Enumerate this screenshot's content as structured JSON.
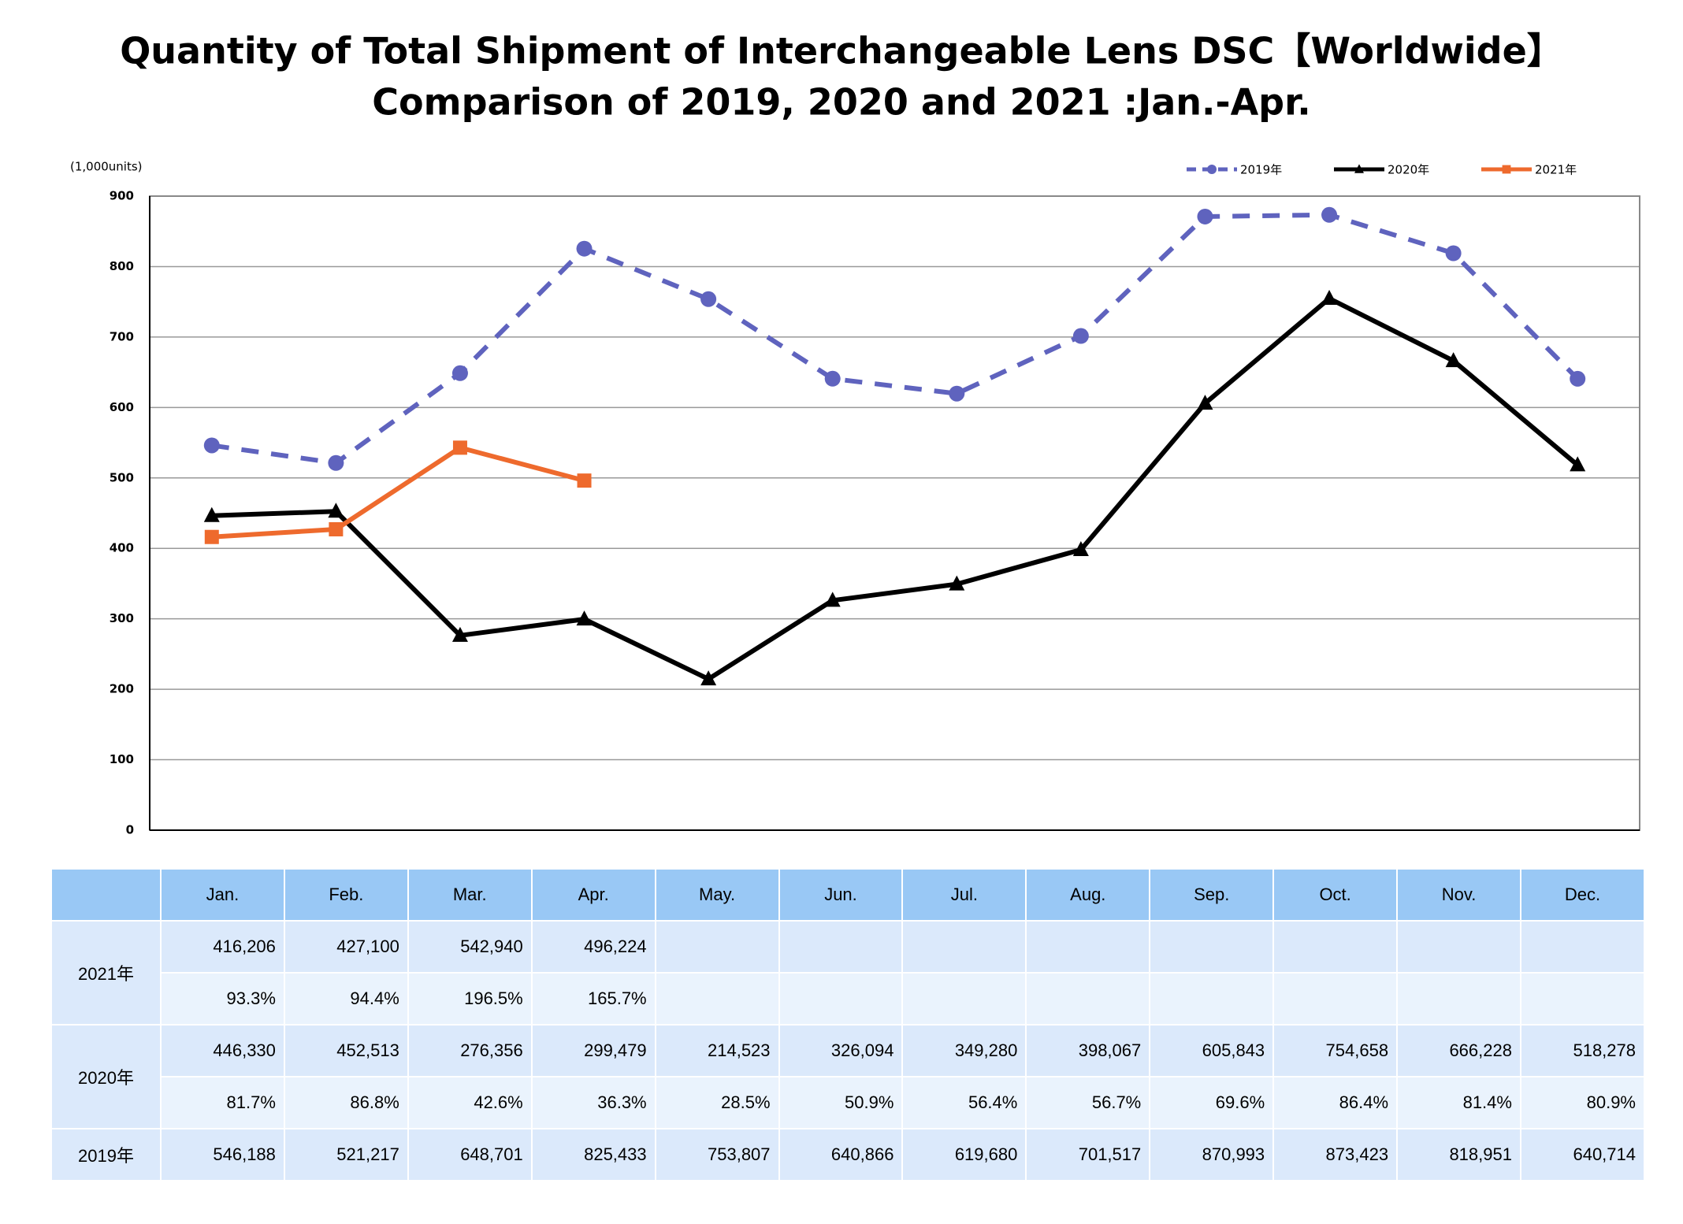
{
  "chart_data": {
    "type": "line",
    "title": "Quantity of Total Shipment of Interchangeable Lens DSC【Worldwide】",
    "subtitle": "Comparison of 2019, 2020 and 2021 :Jan.-Apr.",
    "y_axis_label": "(1,000units)",
    "categories": [
      "Jan.",
      "Feb.",
      "Mar.",
      "Apr.",
      "May.",
      "Jun.",
      "Jul.",
      "Aug.",
      "Sep.",
      "Oct.",
      "Nov.",
      "Dec."
    ],
    "series": [
      {
        "name": "2019年",
        "color": "#5f63be",
        "dashed": true,
        "marker": "circle",
        "values": [
          546.188,
          521.217,
          648.701,
          825.433,
          753.807,
          640.866,
          619.68,
          701.517,
          870.993,
          873.423,
          818.951,
          640.714
        ]
      },
      {
        "name": "2020年",
        "color": "#000000",
        "dashed": false,
        "marker": "triangle",
        "values": [
          446.33,
          452.513,
          276.356,
          299.479,
          214.523,
          326.094,
          349.28,
          398.067,
          605.843,
          754.658,
          666.228,
          518.278
        ]
      },
      {
        "name": "2021年",
        "color": "#ee6a2d",
        "dashed": false,
        "marker": "square",
        "values": [
          416.206,
          427.1,
          542.94,
          496.224,
          null,
          null,
          null,
          null,
          null,
          null,
          null,
          null
        ]
      }
    ],
    "ylim": [
      0,
      900
    ],
    "yticks": [
      0,
      100,
      200,
      300,
      400,
      500,
      600,
      700,
      800,
      900
    ],
    "grid": true,
    "legend": "top-right"
  },
  "table": {
    "rows": [
      {
        "label": "2021年",
        "values": [
          "416,206",
          "427,100",
          "542,940",
          "496,224"
        ],
        "ratios": [
          "93.3%",
          "94.4%",
          "196.5%",
          "165.7%"
        ]
      },
      {
        "label": "2020年",
        "values": [
          "446,330",
          "452,513",
          "276,356",
          "299,479",
          "214,523",
          "326,094",
          "349,280",
          "398,067",
          "605,843",
          "754,658",
          "666,228",
          "518,278"
        ],
        "ratios": [
          "81.7%",
          "86.8%",
          "42.6%",
          "36.3%",
          "28.5%",
          "50.9%",
          "56.4%",
          "56.7%",
          "69.6%",
          "86.4%",
          "81.4%",
          "80.9%"
        ]
      },
      {
        "label": "2019年",
        "values": [
          "546,188",
          "521,217",
          "648,701",
          "825,433",
          "753,807",
          "640,866",
          "619,680",
          "701,517",
          "870,993",
          "873,423",
          "818,951",
          "640,714"
        ]
      }
    ]
  }
}
